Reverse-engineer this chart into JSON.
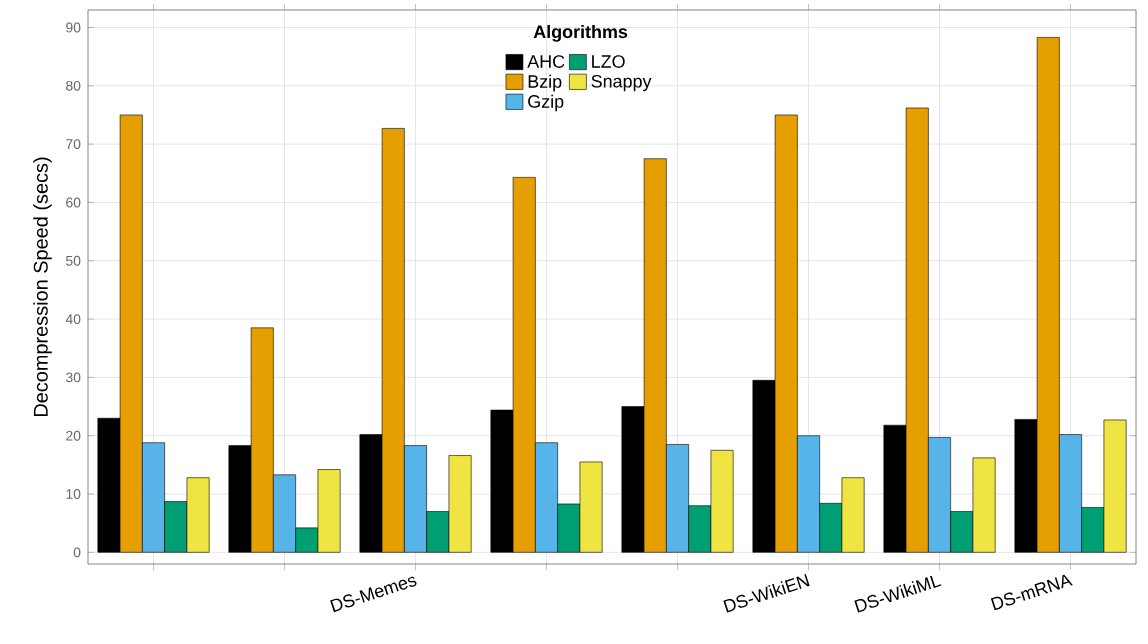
{
  "chart_data": {
    "type": "bar",
    "ylabel": "Decompression Speed (secs)",
    "legend_title": "Algorithms",
    "categories": [
      null,
      null,
      "DS-Memes",
      null,
      null,
      "DS-WikiEN",
      "DS-WikiML",
      "DS-mRNA"
    ],
    "series": [
      {
        "name": "AHC",
        "color": "#000000",
        "values": [
          23,
          18.3,
          20.2,
          24.4,
          25,
          29.5,
          21.8,
          22.8
        ]
      },
      {
        "name": "Bzip",
        "color": "#e69f00",
        "values": [
          75,
          38.5,
          72.7,
          64.3,
          67.5,
          75,
          76.2,
          88.3
        ]
      },
      {
        "name": "Gzip",
        "color": "#56b4e9",
        "values": [
          18.8,
          13.3,
          18.3,
          18.8,
          18.5,
          20,
          19.7,
          20.2
        ]
      },
      {
        "name": "LZO",
        "color": "#009e73",
        "values": [
          8.7,
          4.2,
          7,
          8.3,
          8,
          8.4,
          7,
          7.7
        ]
      },
      {
        "name": "Snappy",
        "color": "#f0e442",
        "values": [
          12.8,
          14.2,
          16.6,
          15.5,
          17.5,
          12.8,
          16.2,
          22.7
        ]
      }
    ],
    "ylim": [
      -2,
      93
    ],
    "yticks": [
      0,
      10,
      20,
      30,
      40,
      50,
      60,
      70,
      80,
      90
    ],
    "grid": true,
    "legend": "top"
  }
}
